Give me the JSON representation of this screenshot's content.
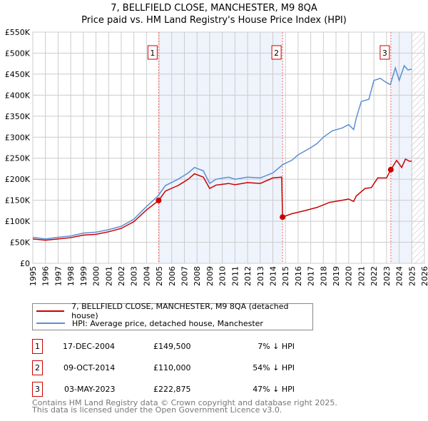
{
  "chart_data": {
    "type": "line",
    "title": "7, BELLFIELD CLOSE, MANCHESTER, M9 8QA",
    "subtitle": "Price paid vs. HM Land Registry's House Price Index (HPI)",
    "xlim": [
      1995,
      2026
    ],
    "ylim": [
      0,
      550000
    ],
    "x_ticks": [
      "1995",
      "1996",
      "1997",
      "1998",
      "1999",
      "2000",
      "2001",
      "2002",
      "2003",
      "2004",
      "2005",
      "2006",
      "2007",
      "2008",
      "2009",
      "2010",
      "2011",
      "2012",
      "2013",
      "2014",
      "2015",
      "2016",
      "2017",
      "2018",
      "2019",
      "2020",
      "2021",
      "2022",
      "2023",
      "2024",
      "2025",
      "2026"
    ],
    "y_ticks": [
      {
        "v": 0,
        "label": "£0"
      },
      {
        "v": 50000,
        "label": "£50K"
      },
      {
        "v": 100000,
        "label": "£100K"
      },
      {
        "v": 150000,
        "label": "£150K"
      },
      {
        "v": 200000,
        "label": "£200K"
      },
      {
        "v": 250000,
        "label": "£250K"
      },
      {
        "v": 300000,
        "label": "£300K"
      },
      {
        "v": 350000,
        "label": "£350K"
      },
      {
        "v": 400000,
        "label": "£400K"
      },
      {
        "v": 450000,
        "label": "£450K"
      },
      {
        "v": 500000,
        "label": "£500K"
      },
      {
        "v": 550000,
        "label": "£550K"
      }
    ],
    "grid": true,
    "series": [
      {
        "name": "7, BELLFIELD CLOSE, MANCHESTER, M9 8QA (detached house)",
        "color": "#cc0000",
        "points": [
          [
            1995,
            58
          ],
          [
            1996,
            55
          ],
          [
            1997,
            58
          ],
          [
            1998,
            61
          ],
          [
            1999,
            67
          ],
          [
            2000,
            69
          ],
          [
            2001,
            75
          ],
          [
            2002,
            83
          ],
          [
            2003,
            99
          ],
          [
            2004,
            127
          ],
          [
            2004.96,
            149.5
          ],
          [
            2005.5,
            172
          ],
          [
            2006.5,
            185
          ],
          [
            2007.3,
            200
          ],
          [
            2007.8,
            213
          ],
          [
            2008.5,
            205
          ],
          [
            2009,
            178
          ],
          [
            2009.5,
            186
          ],
          [
            2010.5,
            190
          ],
          [
            2011,
            187
          ],
          [
            2012,
            192
          ],
          [
            2013,
            190
          ],
          [
            2014,
            203
          ],
          [
            2014.7,
            205
          ],
          [
            2014.77,
            110
          ],
          [
            2015.5,
            118
          ],
          [
            2016.5,
            125
          ],
          [
            2017.5,
            133
          ],
          [
            2018.5,
            145
          ],
          [
            2019.5,
            150
          ],
          [
            2020,
            153
          ],
          [
            2020.4,
            147
          ],
          [
            2020.6,
            160
          ],
          [
            2021.3,
            178
          ],
          [
            2021.8,
            180
          ],
          [
            2022.3,
            203
          ],
          [
            2023,
            203
          ],
          [
            2023.34,
            222.875
          ],
          [
            2023.8,
            245
          ],
          [
            2024.2,
            228
          ],
          [
            2024.5,
            248
          ],
          [
            2024.8,
            243
          ],
          [
            2025,
            243
          ]
        ]
      },
      {
        "name": "HPI: Average price, detached house, Manchester",
        "color": "#5b8fd4",
        "points": [
          [
            1995,
            62
          ],
          [
            1996,
            58
          ],
          [
            1997,
            62
          ],
          [
            1998,
            65
          ],
          [
            1999,
            72
          ],
          [
            2000,
            74
          ],
          [
            2001,
            80
          ],
          [
            2002,
            88
          ],
          [
            2003,
            105
          ],
          [
            2004,
            135
          ],
          [
            2004.9,
            160
          ],
          [
            2005.5,
            185
          ],
          [
            2006.5,
            200
          ],
          [
            2007.3,
            215
          ],
          [
            2007.8,
            228
          ],
          [
            2008.5,
            220
          ],
          [
            2009,
            190
          ],
          [
            2009.5,
            200
          ],
          [
            2010.5,
            205
          ],
          [
            2011,
            200
          ],
          [
            2012,
            205
          ],
          [
            2013,
            203
          ],
          [
            2014,
            215
          ],
          [
            2014.8,
            235
          ],
          [
            2015.5,
            245
          ],
          [
            2016,
            258
          ],
          [
            2017,
            275
          ],
          [
            2017.5,
            285
          ],
          [
            2018,
            300
          ],
          [
            2018.7,
            315
          ],
          [
            2019.5,
            322
          ],
          [
            2020,
            330
          ],
          [
            2020.4,
            318
          ],
          [
            2020.6,
            345
          ],
          [
            2021,
            385
          ],
          [
            2021.6,
            390
          ],
          [
            2022,
            435
          ],
          [
            2022.5,
            440
          ],
          [
            2023,
            430
          ],
          [
            2023.3,
            425
          ],
          [
            2023.7,
            465
          ],
          [
            2024,
            435
          ],
          [
            2024.4,
            470
          ],
          [
            2024.7,
            460
          ],
          [
            2025,
            462
          ]
        ]
      }
    ],
    "sales": [
      {
        "n": "1",
        "x": 2004.96,
        "price": 149500,
        "date": "17-DEC-2004",
        "price_label": "£149,500",
        "hpi": "7% ↓ HPI"
      },
      {
        "n": "2",
        "x": 2014.77,
        "price": 110000,
        "date": "09-OCT-2014",
        "price_label": "£110,000",
        "hpi": "54% ↓ HPI"
      },
      {
        "n": "3",
        "x": 2023.34,
        "price": 222875,
        "date": "03-MAY-2023",
        "price_label": "£222,875",
        "hpi": "47% ↓ HPI"
      }
    ],
    "forecast_start": 2025
  },
  "footer": {
    "line1": "Contains HM Land Registry data © Crown copyright and database right 2025.",
    "line2": "This data is licensed under the Open Government Licence v3.0."
  }
}
